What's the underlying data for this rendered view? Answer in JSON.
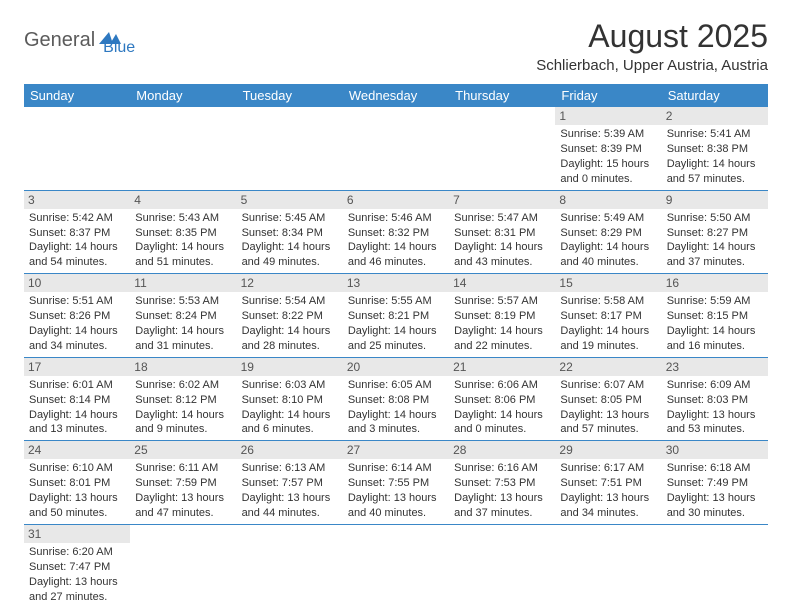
{
  "logo": {
    "text_general": "General",
    "text_blue": "Blue"
  },
  "header": {
    "title": "August 2025",
    "subtitle": "Schlierbach, Upper Austria, Austria"
  },
  "weekdays": [
    "Sunday",
    "Monday",
    "Tuesday",
    "Wednesday",
    "Thursday",
    "Friday",
    "Saturday"
  ],
  "colors": {
    "header_bg": "#3a87c7",
    "header_text": "#ffffff",
    "daynum_bg": "#e8e8e8",
    "border": "#3a87c7",
    "text": "#333333",
    "logo_gray": "#5b5b5b",
    "logo_blue": "#2e78c0"
  },
  "layout": {
    "first_weekday_index": 5,
    "rows": 6,
    "cols": 7
  },
  "days": [
    {
      "n": 1,
      "sr": "5:39 AM",
      "ss": "8:39 PM",
      "dl": "15 hours and 0 minutes."
    },
    {
      "n": 2,
      "sr": "5:41 AM",
      "ss": "8:38 PM",
      "dl": "14 hours and 57 minutes."
    },
    {
      "n": 3,
      "sr": "5:42 AM",
      "ss": "8:37 PM",
      "dl": "14 hours and 54 minutes."
    },
    {
      "n": 4,
      "sr": "5:43 AM",
      "ss": "8:35 PM",
      "dl": "14 hours and 51 minutes."
    },
    {
      "n": 5,
      "sr": "5:45 AM",
      "ss": "8:34 PM",
      "dl": "14 hours and 49 minutes."
    },
    {
      "n": 6,
      "sr": "5:46 AM",
      "ss": "8:32 PM",
      "dl": "14 hours and 46 minutes."
    },
    {
      "n": 7,
      "sr": "5:47 AM",
      "ss": "8:31 PM",
      "dl": "14 hours and 43 minutes."
    },
    {
      "n": 8,
      "sr": "5:49 AM",
      "ss": "8:29 PM",
      "dl": "14 hours and 40 minutes."
    },
    {
      "n": 9,
      "sr": "5:50 AM",
      "ss": "8:27 PM",
      "dl": "14 hours and 37 minutes."
    },
    {
      "n": 10,
      "sr": "5:51 AM",
      "ss": "8:26 PM",
      "dl": "14 hours and 34 minutes."
    },
    {
      "n": 11,
      "sr": "5:53 AM",
      "ss": "8:24 PM",
      "dl": "14 hours and 31 minutes."
    },
    {
      "n": 12,
      "sr": "5:54 AM",
      "ss": "8:22 PM",
      "dl": "14 hours and 28 minutes."
    },
    {
      "n": 13,
      "sr": "5:55 AM",
      "ss": "8:21 PM",
      "dl": "14 hours and 25 minutes."
    },
    {
      "n": 14,
      "sr": "5:57 AM",
      "ss": "8:19 PM",
      "dl": "14 hours and 22 minutes."
    },
    {
      "n": 15,
      "sr": "5:58 AM",
      "ss": "8:17 PM",
      "dl": "14 hours and 19 minutes."
    },
    {
      "n": 16,
      "sr": "5:59 AM",
      "ss": "8:15 PM",
      "dl": "14 hours and 16 minutes."
    },
    {
      "n": 17,
      "sr": "6:01 AM",
      "ss": "8:14 PM",
      "dl": "14 hours and 13 minutes."
    },
    {
      "n": 18,
      "sr": "6:02 AM",
      "ss": "8:12 PM",
      "dl": "14 hours and 9 minutes."
    },
    {
      "n": 19,
      "sr": "6:03 AM",
      "ss": "8:10 PM",
      "dl": "14 hours and 6 minutes."
    },
    {
      "n": 20,
      "sr": "6:05 AM",
      "ss": "8:08 PM",
      "dl": "14 hours and 3 minutes."
    },
    {
      "n": 21,
      "sr": "6:06 AM",
      "ss": "8:06 PM",
      "dl": "14 hours and 0 minutes."
    },
    {
      "n": 22,
      "sr": "6:07 AM",
      "ss": "8:05 PM",
      "dl": "13 hours and 57 minutes."
    },
    {
      "n": 23,
      "sr": "6:09 AM",
      "ss": "8:03 PM",
      "dl": "13 hours and 53 minutes."
    },
    {
      "n": 24,
      "sr": "6:10 AM",
      "ss": "8:01 PM",
      "dl": "13 hours and 50 minutes."
    },
    {
      "n": 25,
      "sr": "6:11 AM",
      "ss": "7:59 PM",
      "dl": "13 hours and 47 minutes."
    },
    {
      "n": 26,
      "sr": "6:13 AM",
      "ss": "7:57 PM",
      "dl": "13 hours and 44 minutes."
    },
    {
      "n": 27,
      "sr": "6:14 AM",
      "ss": "7:55 PM",
      "dl": "13 hours and 40 minutes."
    },
    {
      "n": 28,
      "sr": "6:16 AM",
      "ss": "7:53 PM",
      "dl": "13 hours and 37 minutes."
    },
    {
      "n": 29,
      "sr": "6:17 AM",
      "ss": "7:51 PM",
      "dl": "13 hours and 34 minutes."
    },
    {
      "n": 30,
      "sr": "6:18 AM",
      "ss": "7:49 PM",
      "dl": "13 hours and 30 minutes."
    },
    {
      "n": 31,
      "sr": "6:20 AM",
      "ss": "7:47 PM",
      "dl": "13 hours and 27 minutes."
    }
  ],
  "labels": {
    "sunrise": "Sunrise:",
    "sunset": "Sunset:",
    "daylight": "Daylight:"
  }
}
